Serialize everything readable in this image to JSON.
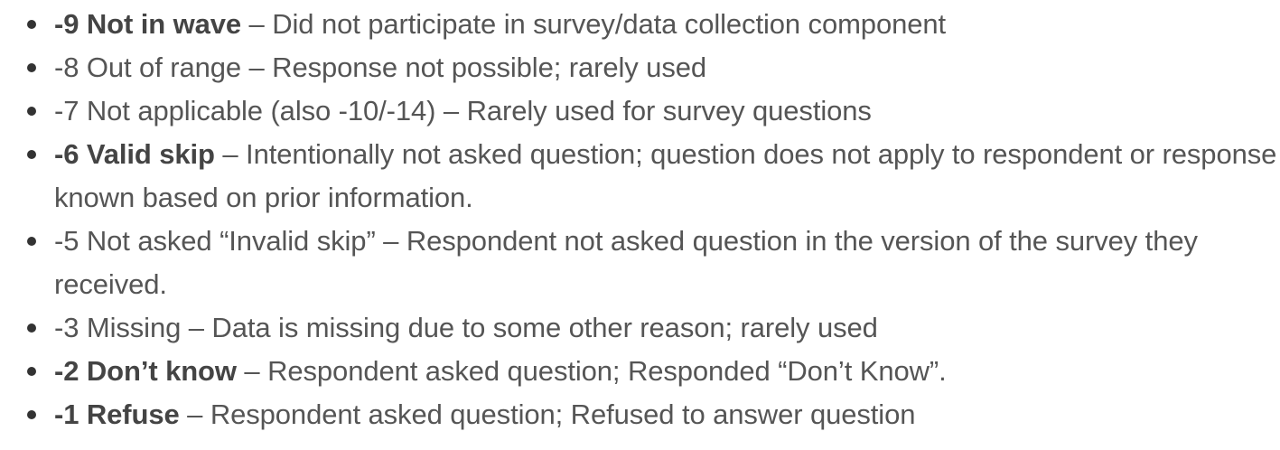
{
  "accent_colors": {
    "text": "#555555",
    "bold_text": "#444444",
    "bullet": "#333333"
  },
  "items": [
    {
      "code": "-9 Not in wave",
      "bold": true,
      "description": " – Did not participate in survey/data collection component"
    },
    {
      "code": "-8 Out of range",
      "bold": false,
      "description": " – Response not possible; rarely used"
    },
    {
      "code": "-7 Not applicable (also -10/-14)",
      "bold": false,
      "description": " – Rarely used for survey questions"
    },
    {
      "code": "-6 Valid skip",
      "bold": true,
      "description": " – Intentionally not asked question; question does not apply to respondent or response known based on prior information."
    },
    {
      "code": "-5 Not asked “Invalid skip”",
      "bold": false,
      "description": " – Respondent not asked question in the version of the survey they received."
    },
    {
      "code": "-3 Missing",
      "bold": false,
      "description": " – Data is missing due to some other reason; rarely used"
    },
    {
      "code": "-2 Don’t know",
      "bold": true,
      "description": " – Respondent asked question; Responded “Don’t Know”."
    },
    {
      "code": "-1 Refuse",
      "bold": true,
      "description": " – Respondent asked question; Refused to answer question"
    }
  ]
}
